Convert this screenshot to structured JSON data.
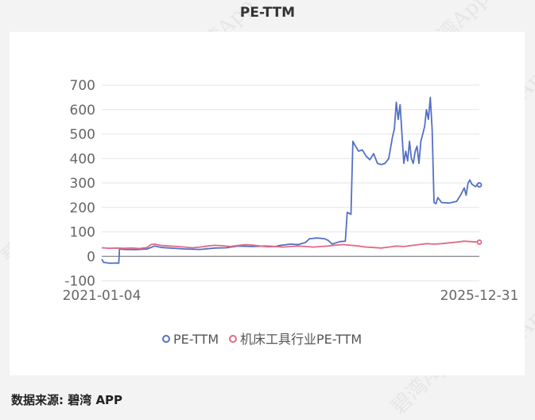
{
  "watermark": "碧湾App",
  "footer": {
    "source": "数据来源: 碧湾 APP"
  },
  "chart_data": {
    "type": "line",
    "title": "PE-TTM",
    "x_tick_labels": [
      "2021-01-04",
      "2025-12-31"
    ],
    "ylim": [
      -100,
      700
    ],
    "y_ticks": [
      700,
      600,
      500,
      400,
      300,
      200,
      100,
      0,
      -100
    ],
    "grid": true,
    "legend_position": "bottom",
    "series": [
      {
        "name": "PE-TTM",
        "color": "#5470c6",
        "points": [
          [
            0.0,
            -12
          ],
          [
            0.005,
            -25
          ],
          [
            0.02,
            -28
          ],
          [
            0.04,
            -27
          ],
          [
            0.045,
            -28
          ],
          [
            0.047,
            30
          ],
          [
            0.06,
            28
          ],
          [
            0.09,
            27
          ],
          [
            0.12,
            30
          ],
          [
            0.14,
            42
          ],
          [
            0.16,
            36
          ],
          [
            0.19,
            33
          ],
          [
            0.22,
            30
          ],
          [
            0.26,
            28
          ],
          [
            0.3,
            34
          ],
          [
            0.33,
            35
          ],
          [
            0.36,
            42
          ],
          [
            0.4,
            40
          ],
          [
            0.43,
            42
          ],
          [
            0.46,
            40
          ],
          [
            0.47,
            44
          ],
          [
            0.5,
            50
          ],
          [
            0.52,
            48
          ],
          [
            0.54,
            57
          ],
          [
            0.55,
            72
          ],
          [
            0.57,
            75
          ],
          [
            0.59,
            72
          ],
          [
            0.6,
            65
          ],
          [
            0.61,
            50
          ],
          [
            0.62,
            55
          ],
          [
            0.63,
            60
          ],
          [
            0.645,
            62
          ],
          [
            0.65,
            180
          ],
          [
            0.66,
            172
          ],
          [
            0.665,
            470
          ],
          [
            0.67,
            455
          ],
          [
            0.68,
            430
          ],
          [
            0.69,
            435
          ],
          [
            0.7,
            410
          ],
          [
            0.71,
            395
          ],
          [
            0.72,
            420
          ],
          [
            0.73,
            380
          ],
          [
            0.74,
            375
          ],
          [
            0.75,
            380
          ],
          [
            0.76,
            400
          ],
          [
            0.77,
            490
          ],
          [
            0.775,
            520
          ],
          [
            0.78,
            630
          ],
          [
            0.785,
            560
          ],
          [
            0.79,
            620
          ],
          [
            0.8,
            380
          ],
          [
            0.805,
            430
          ],
          [
            0.81,
            390
          ],
          [
            0.815,
            470
          ],
          [
            0.82,
            400
          ],
          [
            0.825,
            380
          ],
          [
            0.83,
            430
          ],
          [
            0.835,
            450
          ],
          [
            0.84,
            380
          ],
          [
            0.845,
            470
          ],
          [
            0.85,
            500
          ],
          [
            0.855,
            530
          ],
          [
            0.86,
            600
          ],
          [
            0.865,
            560
          ],
          [
            0.87,
            650
          ],
          [
            0.875,
            520
          ],
          [
            0.88,
            220
          ],
          [
            0.885,
            215
          ],
          [
            0.89,
            240
          ],
          [
            0.895,
            230
          ],
          [
            0.9,
            220
          ],
          [
            0.92,
            218
          ],
          [
            0.94,
            225
          ],
          [
            0.95,
            250
          ],
          [
            0.96,
            280
          ],
          [
            0.965,
            250
          ],
          [
            0.97,
            300
          ],
          [
            0.975,
            312
          ],
          [
            0.98,
            295
          ],
          [
            0.99,
            285
          ],
          [
            0.995,
            295
          ],
          [
            1.0,
            292
          ]
        ]
      },
      {
        "name": "机床工具行业PE-TTM",
        "color": "#e06a86",
        "points": [
          [
            0.0,
            35
          ],
          [
            0.02,
            33
          ],
          [
            0.04,
            34
          ],
          [
            0.06,
            33
          ],
          [
            0.08,
            34
          ],
          [
            0.1,
            32
          ],
          [
            0.12,
            36
          ],
          [
            0.13,
            48
          ],
          [
            0.14,
            50
          ],
          [
            0.16,
            44
          ],
          [
            0.18,
            42
          ],
          [
            0.2,
            40
          ],
          [
            0.22,
            38
          ],
          [
            0.24,
            35
          ],
          [
            0.26,
            38
          ],
          [
            0.28,
            42
          ],
          [
            0.3,
            45
          ],
          [
            0.32,
            43
          ],
          [
            0.34,
            40
          ],
          [
            0.36,
            44
          ],
          [
            0.38,
            48
          ],
          [
            0.4,
            46
          ],
          [
            0.42,
            42
          ],
          [
            0.44,
            39
          ],
          [
            0.46,
            40
          ],
          [
            0.48,
            38
          ],
          [
            0.5,
            40
          ],
          [
            0.52,
            42
          ],
          [
            0.54,
            40
          ],
          [
            0.56,
            38
          ],
          [
            0.58,
            40
          ],
          [
            0.6,
            42
          ],
          [
            0.62,
            46
          ],
          [
            0.64,
            48
          ],
          [
            0.66,
            45
          ],
          [
            0.68,
            42
          ],
          [
            0.7,
            38
          ],
          [
            0.72,
            36
          ],
          [
            0.74,
            34
          ],
          [
            0.76,
            38
          ],
          [
            0.78,
            42
          ],
          [
            0.8,
            40
          ],
          [
            0.82,
            44
          ],
          [
            0.84,
            48
          ],
          [
            0.86,
            52
          ],
          [
            0.88,
            50
          ],
          [
            0.9,
            52
          ],
          [
            0.92,
            55
          ],
          [
            0.94,
            58
          ],
          [
            0.96,
            62
          ],
          [
            0.98,
            60
          ],
          [
            1.0,
            58
          ]
        ]
      }
    ]
  }
}
